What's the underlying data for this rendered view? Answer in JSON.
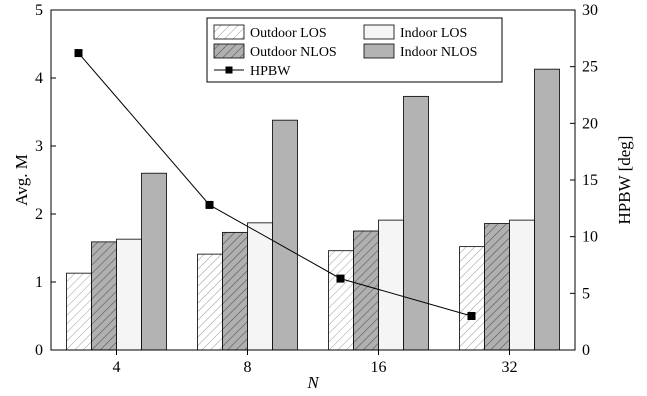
{
  "chart_data": {
    "type": "bar",
    "categories": [
      "4",
      "8",
      "16",
      "32"
    ],
    "xlabel": "N",
    "ylabel_left": "Avg. M",
    "ylabel_right": "HPBW [deg]",
    "ylim_left": [
      0,
      5
    ],
    "ylim_right": [
      0,
      30
    ],
    "yticks_left": [
      "0",
      "1",
      "2",
      "3",
      "4",
      "5"
    ],
    "yticks_right": [
      "0",
      "5",
      "10",
      "15",
      "20",
      "25",
      "30"
    ],
    "grid": false,
    "legend_position": "top-center",
    "series": [
      {
        "name": "Outdoor LOS",
        "axis": "left",
        "pattern": "diag-light",
        "color": "#ffffff",
        "values": [
          1.13,
          1.41,
          1.46,
          1.52
        ]
      },
      {
        "name": "Outdoor NLOS",
        "axis": "left",
        "pattern": "diag-dark",
        "color": "#b0b0b0",
        "values": [
          1.59,
          1.73,
          1.75,
          1.86
        ]
      },
      {
        "name": "Indoor LOS",
        "axis": "left",
        "pattern": "solid",
        "color": "#f5f5f5",
        "values": [
          1.63,
          1.87,
          1.91,
          1.91
        ]
      },
      {
        "name": "Indoor NLOS",
        "axis": "left",
        "pattern": "solid",
        "color": "#b3b3b3",
        "values": [
          2.6,
          3.38,
          3.73,
          4.13
        ]
      }
    ],
    "line_series": {
      "name": "HPBW",
      "axis": "right",
      "color": "#000000",
      "marker": "square",
      "values": [
        26.2,
        12.8,
        6.3,
        3.0
      ]
    }
  }
}
